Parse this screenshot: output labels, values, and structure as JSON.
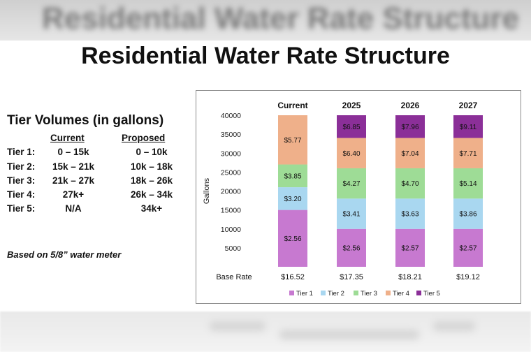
{
  "background": {
    "top_blur_text": "Residential Water Rate Structure"
  },
  "title": "Residential Water Rate Structure",
  "tier_table": {
    "heading": "Tier Volumes (in gallons)",
    "current_header": "Current",
    "proposed_header": "Proposed",
    "rows": [
      {
        "label": "Tier 1:",
        "current": "0 – 15k",
        "proposed": "0 – 10k"
      },
      {
        "label": "Tier 2:",
        "current": "15k – 21k",
        "proposed": "10k – 18k"
      },
      {
        "label": "Tier 3:",
        "current": "21k – 27k",
        "proposed": "18k – 26k"
      },
      {
        "label": "Tier 4:",
        "current": "27k+",
        "proposed": "26k – 34k"
      },
      {
        "label": "Tier 5:",
        "current": "N/A",
        "proposed": "34k+"
      }
    ],
    "note": "Based on 5/8” water meter"
  },
  "chart_data": {
    "type": "bar",
    "stacked": true,
    "categories": [
      "Current",
      "2025",
      "2026",
      "2027"
    ],
    "ylabel": "Gallons",
    "ylim": [
      0,
      40000
    ],
    "yticks": [
      5000,
      10000,
      15000,
      20000,
      25000,
      30000,
      35000,
      40000
    ],
    "legend_position": "bottom",
    "series": [
      {
        "name": "Tier 1",
        "color": "#c779d0",
        "ranges": [
          [
            0,
            15000
          ],
          [
            0,
            10000
          ],
          [
            0,
            10000
          ],
          [
            0,
            10000
          ]
        ],
        "labels": [
          "$2.56",
          "$2.56",
          "$2.57",
          "$2.57"
        ]
      },
      {
        "name": "Tier 2",
        "color": "#a9d7f0",
        "ranges": [
          [
            15000,
            21000
          ],
          [
            10000,
            18000
          ],
          [
            10000,
            18000
          ],
          [
            10000,
            18000
          ]
        ],
        "labels": [
          "$3.20",
          "$3.41",
          "$3.63",
          "$3.86"
        ]
      },
      {
        "name": "Tier 3",
        "color": "#9edc96",
        "ranges": [
          [
            21000,
            27000
          ],
          [
            18000,
            26000
          ],
          [
            18000,
            26000
          ],
          [
            18000,
            26000
          ]
        ],
        "labels": [
          "$3.85",
          "$4.27",
          "$4.70",
          "$5.14"
        ]
      },
      {
        "name": "Tier 4",
        "color": "#efb08a",
        "ranges": [
          [
            27000,
            40000
          ],
          [
            26000,
            34000
          ],
          [
            26000,
            34000
          ],
          [
            26000,
            34000
          ]
        ],
        "labels": [
          "$5.77",
          "$6.40",
          "$7.04",
          "$7.71"
        ]
      },
      {
        "name": "Tier 5",
        "color": "#8b2f98",
        "ranges": [
          null,
          [
            34000,
            40000
          ],
          [
            34000,
            40000
          ],
          [
            34000,
            40000
          ]
        ],
        "labels": [
          "",
          "$6.85",
          "$7.96",
          "$9.11"
        ]
      }
    ],
    "base_rate_label": "Base Rate",
    "base_rates": [
      "$16.52",
      "$17.35",
      "$18.21",
      "$19.12"
    ]
  }
}
